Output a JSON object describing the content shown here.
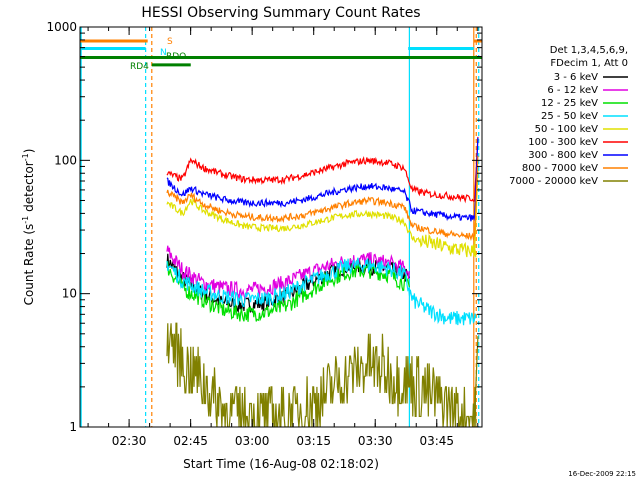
{
  "chart_data": {
    "type": "line",
    "title": "HESSI Observing Summary Count Rates",
    "xlabel": "Start Time (16-Aug-08 02:18:02)",
    "ylabel_main": "Count Rate (s",
    "ylabel_sup1": "-1",
    "ylabel_mid": " detector",
    "ylabel_sup2": "-1",
    "ylabel_end": ")",
    "y_scale": "log",
    "ylim": [
      1,
      1000
    ],
    "xlim_minutes": [
      0,
      98
    ],
    "x_ticks": [
      {
        "label": "02:30",
        "minute": 11.97
      },
      {
        "label": "02:45",
        "minute": 26.97
      },
      {
        "label": "03:00",
        "minute": 41.97
      },
      {
        "label": "03:15",
        "minute": 56.97
      },
      {
        "label": "03:30",
        "minute": 71.97
      },
      {
        "label": "03:45",
        "minute": 86.97
      }
    ],
    "y_ticks": [
      {
        "label": "1",
        "value": 1
      },
      {
        "label": "10",
        "value": 10
      },
      {
        "label": "100",
        "value": 100
      },
      {
        "label": "1000",
        "value": 1000
      }
    ],
    "legend_header": [
      "Det 1,3,4,5,6,9,",
      "FDecim 1, Att 0"
    ],
    "legend_position": "right",
    "series": [
      {
        "name": "3 - 6 keV",
        "color": "#000000",
        "start": 21.2,
        "end": 80.3,
        "x": [
          21.2,
          25,
          30,
          35,
          40,
          45,
          50,
          55,
          60,
          65,
          70,
          75,
          79,
          80.3
        ],
        "y": [
          18,
          13,
          10,
          8.5,
          8.2,
          8.5,
          9.5,
          11.5,
          14,
          16,
          16,
          15.5,
          14,
          13
        ]
      },
      {
        "name": "6 - 12 keV",
        "color": "#e000e0",
        "start": 21.2,
        "end": 80.3,
        "x": [
          21.2,
          25,
          30,
          35,
          40,
          45,
          50,
          55,
          60,
          65,
          70,
          75,
          79,
          80.3
        ],
        "y": [
          21,
          15,
          12,
          11,
          10.5,
          11,
          12,
          14,
          16,
          17.5,
          18,
          17,
          15.5,
          14.5
        ]
      },
      {
        "name": "12 - 25 keV",
        "color": "#00e000",
        "start": 21.2,
        "end": 80.3,
        "x": [
          21.2,
          25,
          30,
          35,
          40,
          45,
          50,
          55,
          60,
          65,
          70,
          75,
          79,
          80.3
        ],
        "y": [
          16,
          11,
          9,
          7.5,
          7,
          7.2,
          8,
          10,
          12.5,
          14.5,
          15,
          14,
          12,
          11
        ]
      },
      {
        "name": "25 - 50 keV",
        "color": "#00e0ff",
        "start": 21.2,
        "end": 96.5,
        "x": [
          21.2,
          25,
          30,
          35,
          40,
          45,
          50,
          55,
          60,
          65,
          70,
          75,
          79,
          81,
          85,
          90,
          94,
          96.5
        ],
        "y": [
          17,
          12.5,
          10.5,
          9.5,
          9,
          9.2,
          10,
          12,
          14,
          16,
          16.5,
          15.5,
          14,
          9,
          7.5,
          6.5,
          6.5,
          6.5
        ]
      },
      {
        "name": "50 - 100 keV",
        "color": "#e0e000",
        "start": 21.2,
        "end": 96.5,
        "x": [
          21.2,
          25,
          27,
          30,
          35,
          40,
          45,
          50,
          55,
          60,
          65,
          70,
          75,
          79,
          81,
          85,
          90,
          94,
          96.5
        ],
        "y": [
          48,
          40,
          50,
          42,
          36,
          32,
          31,
          31,
          33,
          36,
          39,
          40,
          38,
          35,
          26,
          24,
          22,
          21,
          21
        ]
      },
      {
        "name": "100 - 300 keV",
        "color": "#ff0000",
        "start": 21.2,
        "end": 96.5,
        "x": [
          21.2,
          25,
          27,
          30,
          35,
          40,
          45,
          50,
          55,
          60,
          65,
          70,
          75,
          79,
          81,
          85,
          90,
          94,
          96.5
        ],
        "y": [
          80,
          72,
          100,
          88,
          78,
          72,
          71,
          72,
          78,
          86,
          95,
          100,
          96,
          88,
          60,
          56,
          54,
          52,
          52
        ]
      },
      {
        "name": "300 - 800 keV",
        "color": "#0000ff",
        "start": 21.2,
        "end": 96.5,
        "x": [
          21.2,
          25,
          27,
          30,
          35,
          40,
          45,
          50,
          55,
          60,
          65,
          70,
          75,
          79,
          81,
          85,
          90,
          94,
          96.5
        ],
        "y": [
          70,
          55,
          62,
          56,
          51,
          48,
          48,
          48,
          51,
          56,
          61,
          64,
          62,
          58,
          42,
          40,
          38,
          37,
          37
        ]
      },
      {
        "name": "800 - 7000 keV",
        "color": "#ff8000",
        "start": 21.2,
        "end": 96.5,
        "x": [
          21.2,
          25,
          27,
          30,
          35,
          40,
          45,
          50,
          55,
          60,
          65,
          70,
          75,
          79,
          81,
          85,
          90,
          94,
          96.5
        ],
        "y": [
          58,
          48,
          55,
          47,
          41,
          38,
          37,
          37,
          39,
          43,
          47,
          50,
          48,
          45,
          32,
          30,
          28,
          27,
          27
        ]
      },
      {
        "name": "7000 - 20000 keV",
        "color": "#808000",
        "start": 21.2,
        "end": 96.5,
        "x": [
          21.2,
          23,
          25,
          28,
          31,
          33,
          36,
          40,
          45,
          49,
          53,
          57,
          60,
          63,
          67,
          70,
          72,
          75,
          78,
          81,
          85,
          89,
          92,
          94.5,
          96.5
        ],
        "y": [
          5.5,
          4,
          3,
          2.5,
          2,
          1.6,
          1.3,
          1.2,
          1.15,
          1.2,
          1.3,
          1.5,
          1.8,
          2.2,
          2.6,
          3,
          2.8,
          2.5,
          2.3,
          2.2,
          1.8,
          1.5,
          1.3,
          1.2,
          1.2
        ]
      }
    ],
    "spike": {
      "start": 96.2,
      "end": 97.0,
      "peak": 150
    },
    "annotations": [
      {
        "label": "S",
        "color": "#ff8000"
      },
      {
        "label": "N",
        "color": "#00e0ff"
      },
      {
        "label": "RDO",
        "color": "#008000"
      },
      {
        "label": "RD4",
        "color": "#008000"
      }
    ],
    "state_bars": [
      {
        "label": "S",
        "color": "#ff8000",
        "level": 785,
        "segments": [
          [
            0,
            16.5
          ],
          [
            96,
            98
          ]
        ]
      },
      {
        "label": "N",
        "color": "#00e0ff",
        "level": 690,
        "segments": [
          [
            0,
            16
          ],
          [
            80,
            96
          ]
        ]
      },
      {
        "label": "RDO",
        "color": "#008000",
        "level": 590,
        "segments": [
          [
            0,
            98
          ]
        ]
      },
      {
        "label": "RD4",
        "color": "#008000",
        "level": 520,
        "segments": [
          [
            17.5,
            27
          ]
        ]
      }
    ],
    "vertical_markers": [
      {
        "minute": 16.0,
        "color": "#00e0ff",
        "style": "dashed"
      },
      {
        "minute": 17.5,
        "color": "#ff8000",
        "style": "dashed"
      },
      {
        "minute": 80.3,
        "color": "#00e0ff",
        "style": "solid"
      },
      {
        "minute": 96.0,
        "color": "#ff8000",
        "style": "solid"
      },
      {
        "minute": 96.6,
        "color": "#ff8000",
        "style": "dashed"
      },
      {
        "minute": 97.2,
        "color": "#00e0ff",
        "style": "dashed"
      }
    ]
  },
  "footer_stamp": "16-Dec-2009 22:15"
}
